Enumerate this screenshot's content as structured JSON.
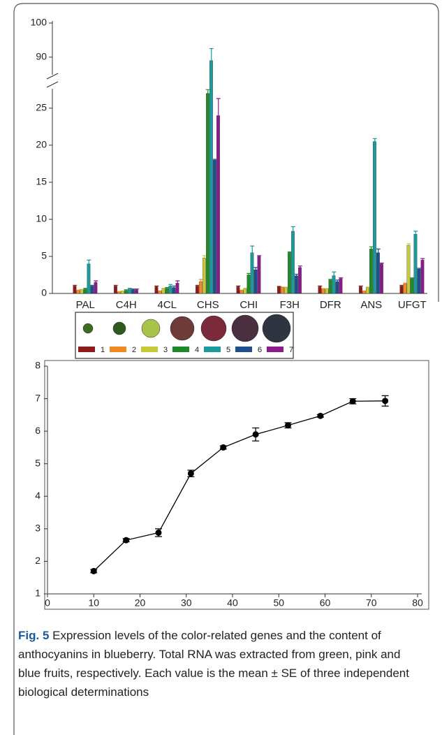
{
  "chart_data": [
    {
      "type": "bar",
      "categories": [
        "PAL",
        "C4H",
        "4CL",
        "CHS",
        "CHI",
        "F3H",
        "DFR",
        "ANS",
        "UFGT"
      ],
      "series": [
        {
          "name": "1",
          "color": "#8b1a1a",
          "values": [
            1.0,
            1.0,
            0.9,
            1.0,
            0.9,
            0.9,
            0.9,
            0.9,
            1.0
          ],
          "errors": [
            0.1,
            0.1,
            0.1,
            0.1,
            0.1,
            0.05,
            0.1,
            0.1,
            0.1
          ]
        },
        {
          "name": "2",
          "color": "#f08a24",
          "values": [
            0.4,
            0.2,
            0.3,
            1.6,
            0.4,
            0.8,
            0.6,
            0.3,
            1.3
          ],
          "errors": [
            0.05,
            0.05,
            0.05,
            0.3,
            0.05,
            0.05,
            0.05,
            0.05,
            0.1
          ]
        },
        {
          "name": "3",
          "color": "#c8c83c",
          "values": [
            0.5,
            0.3,
            0.6,
            4.8,
            0.6,
            0.8,
            0.6,
            0.8,
            6.5
          ],
          "errors": [
            0.05,
            0.05,
            0.1,
            0.3,
            0.1,
            0.05,
            0.05,
            0.05,
            0.2
          ]
        },
        {
          "name": "4",
          "color": "#1f8a2a",
          "values": [
            0.6,
            0.4,
            0.7,
            27.0,
            2.5,
            5.5,
            1.8,
            6.0,
            2.0
          ],
          "errors": [
            0.1,
            0.1,
            0.1,
            0.5,
            0.2,
            0.1,
            0.1,
            0.3,
            0.1
          ]
        },
        {
          "name": "5",
          "color": "#1a9a9a",
          "values": [
            4.0,
            0.6,
            1.0,
            89,
            5.5,
            8.4,
            2.4,
            20.5,
            8.0
          ],
          "errors": [
            0.5,
            0.1,
            0.2,
            3.5,
            0.9,
            0.6,
            0.5,
            0.4,
            0.4
          ]
        },
        {
          "name": "6",
          "color": "#1f4e8c",
          "values": [
            1.0,
            0.5,
            0.8,
            18.0,
            3.2,
            2.4,
            1.6,
            5.5,
            3.3
          ],
          "errors": [
            0.1,
            0.1,
            0.2,
            0.1,
            0.3,
            0.2,
            0.2,
            0.5,
            0.1
          ]
        },
        {
          "name": "7",
          "color": "#8b1a8b",
          "values": [
            1.5,
            0.5,
            1.4,
            24.0,
            5.0,
            3.5,
            2.0,
            4.0,
            4.5
          ],
          "errors": [
            0.2,
            0.1,
            0.3,
            2.3,
            0.1,
            0.2,
            0.1,
            0.1,
            0.2
          ]
        }
      ],
      "ylim": [
        0,
        100
      ],
      "yticks": [
        0,
        5,
        10,
        15,
        20,
        25,
        90,
        100
      ],
      "ybreak": [
        28,
        84
      ],
      "legend": "bottom"
    },
    {
      "type": "line",
      "color": "#000000",
      "x": [
        10,
        17,
        24,
        31,
        38,
        45,
        52,
        59,
        66,
        73
      ],
      "values": [
        1.7,
        2.65,
        2.88,
        4.7,
        5.5,
        5.9,
        6.18,
        6.47,
        6.92,
        6.93
      ],
      "errors": [
        0.05,
        0.05,
        0.12,
        0.1,
        0.05,
        0.2,
        0.08,
        0.04,
        0.08,
        0.16
      ],
      "xlim": [
        0,
        80
      ],
      "xticks": [
        0,
        10,
        20,
        30,
        40,
        50,
        60,
        70,
        80
      ],
      "ylim": [
        1,
        8
      ],
      "yticks": [
        1,
        2,
        3,
        4,
        5,
        6,
        7,
        8
      ]
    }
  ],
  "caption": {
    "label": "Fig. 5",
    "text": "Expression levels of the color-related genes and the content of anthocyanins in blueberry. Total RNA was extracted from green, pink and blue fruits, respectively. Each value is the mean ± SE of three independent biological determinations"
  }
}
